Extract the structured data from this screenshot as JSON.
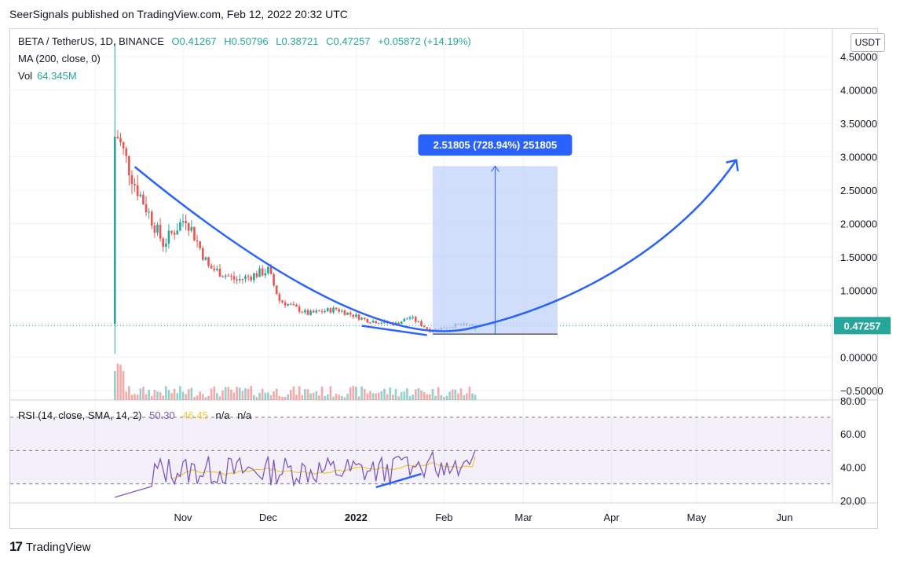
{
  "publisher_line": "SeerSignals published on TradingView.com, Feb 12, 2022 20:32 UTC",
  "legend": {
    "symbol": "BETA / TetherUS, 1D, BINANCE",
    "open": "O0.41267",
    "high": "H0.50796",
    "low": "L0.38721",
    "close": "C0.47257",
    "change": "+0.05872 (+14.19%)",
    "ma": "MA (200, close, 0)",
    "vol_label": "Vol",
    "vol_value": "64.345M"
  },
  "currency_button": "USDT",
  "price_axis_labels": [
    "4.50000",
    "4.00000",
    "3.50000",
    "3.00000",
    "2.50000",
    "2.00000",
    "1.50000",
    "1.00000",
    "0.00000",
    "−0.50000"
  ],
  "last_price_label": "0.47257",
  "measure_label": "2.51805 (728.94%) 251805",
  "rsi": {
    "label": "RSI (14, close, SMA, 14, 2)",
    "value1": "50.30",
    "value2": "46.45",
    "na1": "n/a",
    "na2": "n/a",
    "axis_labels": [
      "80.00",
      "60.00",
      "40.00",
      "20.00"
    ]
  },
  "time_axis_labels": [
    "Nov",
    "Dec",
    "2022",
    "Feb",
    "Mar",
    "Apr",
    "May",
    "Jun"
  ],
  "footer_brand": "TradingView",
  "colors": {
    "up": "#26a69a",
    "down": "#ef5350",
    "drawing": "#2962ff",
    "rsi_line": "#7e57c2",
    "rsi_ma": "#f0c93a",
    "measure_fill": "#bcd0fb"
  },
  "chart_data": {
    "type": "candlestick",
    "symbol": "BETA / TetherUS",
    "interval": "1D",
    "exchange": "BINANCE",
    "ohlc_last": {
      "open": 0.41267,
      "high": 0.50796,
      "low": 0.38721,
      "close": 0.47257
    },
    "change": 0.05872,
    "change_pct": 14.19,
    "volume_last": "64.345M",
    "ylim": [
      -0.5,
      4.5
    ],
    "approx_closes": [
      {
        "date": "2021-10-09",
        "close": 3.3
      },
      {
        "date": "2021-10-15",
        "close": 2.6
      },
      {
        "date": "2021-10-25",
        "close": 1.7
      },
      {
        "date": "2021-11-02",
        "close": 2.1
      },
      {
        "date": "2021-11-10",
        "close": 1.35
      },
      {
        "date": "2021-11-20",
        "close": 1.15
      },
      {
        "date": "2021-12-01",
        "close": 1.3
      },
      {
        "date": "2021-12-05",
        "close": 0.85
      },
      {
        "date": "2021-12-15",
        "close": 0.65
      },
      {
        "date": "2021-12-25",
        "close": 0.72
      },
      {
        "date": "2022-01-05",
        "close": 0.55
      },
      {
        "date": "2022-01-15",
        "close": 0.5
      },
      {
        "date": "2022-01-20",
        "close": 0.6
      },
      {
        "date": "2022-01-27",
        "close": 0.4
      },
      {
        "date": "2022-02-05",
        "close": 0.48
      },
      {
        "date": "2022-02-12",
        "close": 0.47257
      }
    ],
    "measure": {
      "label": "2.51805 (728.94%) 251805",
      "from_price": 0.345,
      "to_price": 2.86
    },
    "rsi": {
      "period": 14,
      "current": 50.3,
      "ma": 46.45,
      "ylim": [
        20,
        80
      ],
      "bands": [
        30,
        50,
        70
      ]
    }
  }
}
